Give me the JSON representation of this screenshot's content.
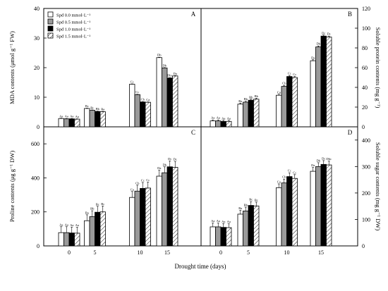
{
  "figure": {
    "xlabel": "Drought time (days)",
    "legend": [
      {
        "label": "Spd 0.0 mmol·L⁻¹",
        "pattern": "white"
      },
      {
        "label": "Spd 0.5 mmol·L⁻¹",
        "pattern": "gray"
      },
      {
        "label": "Spd 1.0 mmol·L⁻¹",
        "pattern": "black"
      },
      {
        "label": "Spd 1.5 mmol·L⁻¹",
        "pattern": "hatch"
      }
    ]
  },
  "chart_data": [
    {
      "panel": "A",
      "type": "bar",
      "ylabel": "MDA contents (μmol g⁻¹ FW)",
      "yaxis_side": "left",
      "ylim": [
        0,
        40
      ],
      "yticks": [
        0,
        10,
        20,
        30,
        40
      ],
      "categories": [
        "0",
        "5",
        "10",
        "15"
      ],
      "series": [
        {
          "name": "Spd 0.0 mmol·L⁻¹",
          "values": [
            2.8,
            6.2,
            14.4,
            23.4
          ],
          "labels": [
            "Aa",
            "Bc",
            "Cc",
            "Db"
          ]
        },
        {
          "name": "Spd 0.5 mmol·L⁻¹",
          "values": [
            2.7,
            5.6,
            10.9,
            19.9
          ],
          "labels": [
            "Aa",
            "Bc",
            "Cc",
            "Db"
          ]
        },
        {
          "name": "Spd 1.0 mmol·L⁻¹",
          "values": [
            2.7,
            5.2,
            8.4,
            16.5
          ],
          "labels": [
            "Aa",
            "Bb",
            "Cb",
            "Dbc"
          ]
        },
        {
          "name": "Spd 1.5 mmol·L⁻¹",
          "values": [
            2.6,
            5.1,
            8.3,
            17.2
          ],
          "labels": [
            "Aa",
            "Ba",
            "Ca",
            "Da"
          ]
        }
      ]
    },
    {
      "panel": "B",
      "type": "bar",
      "ylabel": "Soluble protein contents (mg g⁻¹)",
      "yaxis_side": "right",
      "ylim": [
        0,
        120
      ],
      "yticks": [
        0,
        20,
        40,
        60,
        80,
        100,
        120
      ],
      "categories": [
        "0",
        "5",
        "10",
        "15"
      ],
      "series": [
        {
          "name": "Spd 0.0 mmol·L⁻¹",
          "values": [
            6,
            23,
            32,
            67
          ],
          "labels": [
            "Aa",
            "Ba",
            "Ca",
            "Da"
          ]
        },
        {
          "name": "Spd 0.5 mmol·L⁻¹",
          "values": [
            6,
            25,
            41,
            81
          ],
          "labels": [
            "Aa",
            "Bb",
            "Cb",
            "Db"
          ]
        },
        {
          "name": "Spd 1.0 mmol·L⁻¹",
          "values": [
            5.5,
            27,
            51,
            92
          ],
          "labels": [
            "Aa",
            "Bb",
            "Cc",
            "Dc"
          ]
        },
        {
          "name": "Spd 1.5 mmol·L⁻¹",
          "values": [
            5.5,
            28,
            50,
            91
          ],
          "labels": [
            "Aa",
            "Bb",
            "Cc",
            "Dc"
          ]
        }
      ]
    },
    {
      "panel": "C",
      "type": "bar",
      "ylabel": "Proline contents (μg g⁻¹ DW)",
      "yaxis_side": "left",
      "ylim": [
        0,
        700
      ],
      "yticks": [
        0,
        200,
        400,
        600
      ],
      "categories": [
        "0",
        "5",
        "10",
        "15"
      ],
      "series": [
        {
          "name": "Spd 0.0 mmol·L⁻¹",
          "values": [
            78,
            148,
            285,
            410
          ],
          "labels": [
            "Aa",
            "Ba",
            "Ca",
            "Da"
          ]
        },
        {
          "name": "Spd 0.5 mmol·L⁻¹",
          "values": [
            78,
            172,
            322,
            430
          ],
          "labels": [
            "Aa",
            "Bb",
            "Cb",
            "Db"
          ]
        },
        {
          "name": "Spd 1.0 mmol·L⁻¹",
          "values": [
            76,
            198,
            338,
            465
          ],
          "labels": [
            "Aa",
            "Bc",
            "Cc",
            "Dc"
          ]
        },
        {
          "name": "Spd 1.5 mmol·L⁻¹",
          "values": [
            75,
            200,
            340,
            462
          ],
          "labels": [
            "Aa",
            "Bc",
            "Cc",
            "Dc"
          ]
        }
      ]
    },
    {
      "panel": "D",
      "type": "bar",
      "ylabel": "Soluble sugar contents (mg g⁻¹ DW)",
      "yaxis_side": "right",
      "ylim": [
        0,
        450
      ],
      "yticks": [
        0,
        100,
        200,
        300,
        400
      ],
      "categories": [
        "0",
        "5",
        "10",
        "15"
      ],
      "series": [
        {
          "name": "Spd 0.0 mmol·L⁻¹",
          "values": [
            72,
            120,
            220,
            282
          ],
          "labels": [
            "Aa",
            "Ba",
            "Ca",
            "Da"
          ]
        },
        {
          "name": "Spd 0.5 mmol·L⁻¹",
          "values": [
            72,
            132,
            238,
            300
          ],
          "labels": [
            "Aa",
            "Bb",
            "Cb",
            "Db"
          ]
        },
        {
          "name": "Spd 1.0 mmol·L⁻¹",
          "values": [
            70,
            153,
            262,
            308
          ],
          "labels": [
            "Aa",
            "Bc",
            "Cc",
            "Dc"
          ]
        },
        {
          "name": "Spd 1.5 mmol·L⁻¹",
          "values": [
            69,
            151,
            255,
            306
          ],
          "labels": [
            "Aa",
            "Bc",
            "Cc",
            "Dbc"
          ]
        }
      ]
    }
  ]
}
